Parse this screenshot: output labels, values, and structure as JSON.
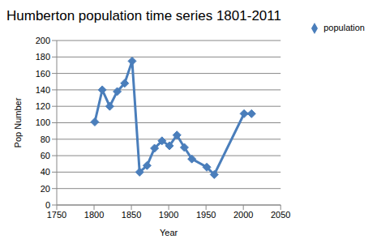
{
  "chart_data": {
    "type": "line",
    "title": "Humberton population time series 1801-2011",
    "x_label": "Year",
    "y_label": "Pop Number",
    "x": [
      1801,
      1811,
      1821,
      1831,
      1841,
      1851,
      1861,
      1871,
      1881,
      1891,
      1901,
      1911,
      1921,
      1931,
      1951,
      1961,
      2001,
      2011
    ],
    "series": [
      {
        "name": "population",
        "color": "#4a7ebb",
        "marker": "diamond",
        "values": [
          101,
          140,
          120,
          138,
          148,
          175,
          40,
          48,
          69,
          78,
          72,
          85,
          70,
          56,
          46,
          37,
          111,
          111
        ]
      }
    ],
    "xlim": [
      1750,
      2050
    ],
    "xticks": [
      1750,
      1800,
      1850,
      1900,
      1950,
      2000,
      2050
    ],
    "ylim": [
      0,
      200
    ],
    "yticks": [
      0,
      20,
      40,
      60,
      80,
      100,
      120,
      140,
      160,
      180,
      200
    ],
    "grid": true,
    "legend": "top right"
  }
}
